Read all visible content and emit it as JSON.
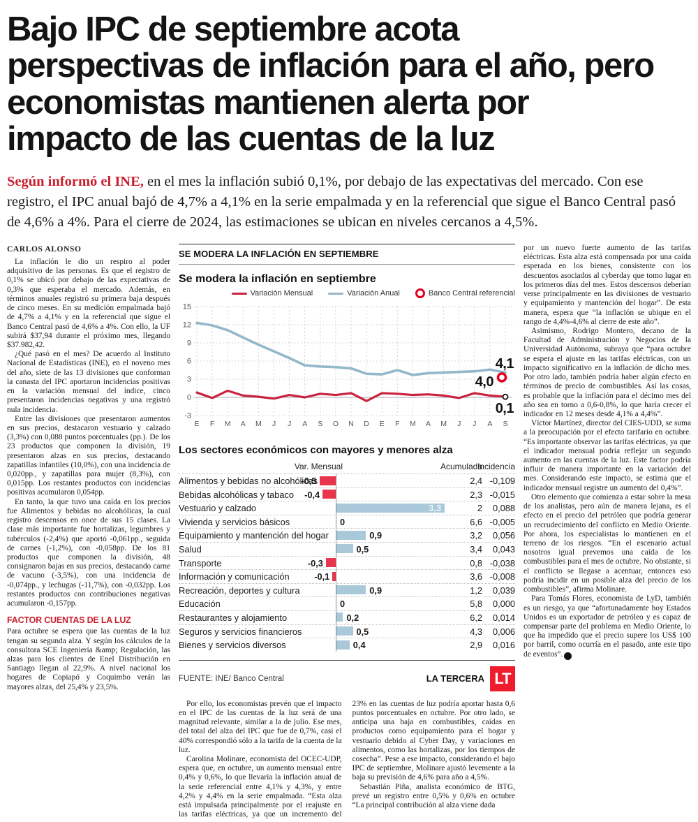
{
  "headline": {
    "lines": [
      "Bajo IPC de septiembre acota",
      "perspectivas de inflación para el año, pero",
      "economistas mantienen alerta por",
      "impacto de las cuentas de la luz"
    ]
  },
  "lede": {
    "kicker": "Según informó el INE,",
    "text": " en el mes la inflación subió 0,1%, por debajo de las expectativas del mercado. Con ese registro, el IPC anual bajó de 4,7% a 4,1% en la serie empalmada y en la referencial que sigue el Banco Central pasó de 4,6% a 4%. Para el cierre de 2024, las estimaciones se ubican en niveles cercanos a 4,5%."
  },
  "byline": "CARLOS ALONSO",
  "article": {
    "left": {
      "p1": "La inflación le dio un respiro al poder adquisitivo de las personas. Es que el registro de 0,1% se ubicó por debajo de las expectativas de 0,3% que esperaba el mercado. Además, en términos anuales registró su primera baja después de cinco meses. En su medición empalmada bajó de 4,7% a 4,1% y en la referencial que sigue el Banco Central pasó de 4,6% a 4%. Con ello, la UF subirá $37,94 durante el próximo mes, llegando $37.982,42.",
      "p2": "¿Qué pasó en el mes? De acuerdo al Instituto Nacional de Estadísticas (INE), en el noveno mes del año, siete de las 13 divisiones que conforman la canasta del IPC aportaron incidencias positivas en la variación mensual del índice, cinco presentaron incidencias negativas y una registró nula incidencia.",
      "p3": "Entre las divisiones que presentaron aumentos en sus precios, destacaron vestuario y calzado (3,3%) con 0,088 puntos porcentuales (pp.). De los 23 productos que componen la división, 19 presentaron alzas en sus precios, destacando zapatillas infantiles (10,0%), con una incidencia de 0,020pp., y zapatillas para mujer (8,3%), con 0,015pp. Los restantes productos con incidencias positivas acumularon 0,054pp.",
      "p4": "En tanto, la que tuvo una caída en los precios fue Alimentos y bebidas no alcohólicas, la cual registro descensos en once de sus 15 clases. La clase más importante fue hortalizas, legumbres y tubérculos (-2,4%) que aportó -0,061pp., seguida de carnes (-1,2%), con -0,058pp. De los 81 productos que componen la división, 48 consignaron bajas en sus precios, destacando carne de vacuno (-3,5%), con una incidencia de -0,074pp., y lechugas (-11,7%), con -0,032pp. Los restantes productos con contribuciones negativas acumularon -0,157pp.",
      "subhead": "FACTOR CUENTAS DE LA LUZ",
      "p5": "Para octubre se espera que las cuentas de la luz tengan su segunda alza. Y según los cálculos de la consultora SCE Ingeniería &amp; Regulación, las alzas para los clientes de Enel Distribución en Santiago llegan al 22,9%. A nivel nacional los hogares de Copiapó y Coquimbo verán las mayores alzas, del 25,4% y 23,5%."
    },
    "middle": {
      "p1": "Por ello, los economistas prevén que el impacto en el IPC de las cuentas de la luz será de una magnitud relevante, similar a la de julio. Ese mes, del total del alza del IPC que fue de 0,7%, casi el 40% correspondió sólo a la tarifa de la cuenta de la luz.",
      "p2": "Carolina Molinare, economista del OCEC-UDP, espera que, en octubre, un aumento mensual entre 0,4% y 0,6%, lo que llevaría la inflación anual de la serie referencial entre 4,1% y 4,3%, y entre 4,2% y 4,4% en la serie empalmada. “Esta alza está impulsada principalmente por el reajuste en las tarifas eléctricas, ya que un incremento del 23% en las cuentas de luz podría aportar hasta 0,6 puntos porcentuales en octubre. Por otro lado, se anticipa una baja en combustibles, caídas en productos como equipamiento para el hogar y vestuario debido al Cyber Day, y variaciones en alimentos, como las hortalizas, por los tiempos de cosecha”. Pese a ese impacto, considerando el bajo IPC de septiembre, Molinare ajustó levemente a la baja su previsión de 4,6% para año a 4,5%.",
      "p3": "Sebastián Piña, analista económico de BTG, prevé un registro entre 0,5% y 0,6% en octubre “La principal contribución al alza viene dada"
    },
    "right": {
      "p1": "por un nuevo fuerte aumento de las tarifas eléctricas. Esta alza está compensada por una caída esperada en los bienes, consistente con los descuentos asociados al cyberday que tomo lugar en los primeros días del mes. Estos descensos deberían verse principalmente en las divisiones de vestuario y equipamiento y mantención del hogar”. De esta manera, espera que “la inflación se ubique en el rango de 4,4%-4,6% al cierre de este año”.",
      "p2": "Asimismo, Rodrigo Montero, decano de la Facultad de Administración y Negocios de la Universidad Autónoma, subraya que “para octubre se espera el ajuste en las tarifas eléctricas, con un impacto significativo en la inflación de dicho mes. Por otro lado, también podría haber algún efecto en términos de precio de combustibles. Así las cosas, es probable que la inflación para el décimo mes del año sea en torno a 0,6-0,8%, lo que haría crecer el indicador en 12 meses desde 4,1% a 4,4%”.",
      "p3": "Víctor Martínez, director del CIES-UDD, se suma a la preocupación por el efecto tarifario en octubre. “Es importante observar las tarifas eléctricas, ya que el indicador mensual podría reflejar un segundo aumento en las cuentas de la luz. Este factor podría influir de manera importante en la variación del mes. Considerando este impacto, se estima que el indicador mensual registre un aumento del 0,4%”.",
      "p4": "Otro elemento que comienza a estar sobre la mesa de los analistas, pero aún de manera lejana, es el efecto en el precio del petróleo que podría generar un recrudecimiento del conflicto en Medio Oriente. Por ahora, los especialistas lo mantienen en el terreno de los riesgos. “En el escenario actual nosotros igual prevemos una caída de los combustibles para el mes de octubre. No obstante, si el conflicto se llegase a acentuar, entonces eso podría incidir en un posible alza del precio de los combustibles”, afirma Molinare.",
      "p5": "Para Tomás Flores, economista de LyD, también es un riesgo, ya que “afortunadamente hoy Estados Unidos es un exportador de petróleo y es capaz de compensar parte del problema en Medio Oriente, lo que ha impedido que el precio supere los US$ 100 por barril, como ocurría en el pasado, ante este tipo de eventos”."
    }
  },
  "graphic": {
    "kicker": "SE MODERA LA INFLACIÓN EN SEPTIEMBRE",
    "title": "Se modera la inflación en septiembre",
    "legend": [
      {
        "label": "Variación Mensual",
        "color": "#c9233f",
        "type": "line"
      },
      {
        "label": "Variación Anual",
        "color": "#94b7c9",
        "type": "line"
      },
      {
        "label": "Banco Central referencial",
        "color": "#e2001a",
        "type": "circle"
      }
    ],
    "bars_title": "Los sectores económicos con mayores y menores alza",
    "bars_headers": {
      "var": "Var. Mensual",
      "acumulada": "Acumulada",
      "incidencia": "Incidencia"
    },
    "source": "FUENTE: INE/ Banco Central",
    "credit": "LA TERCERA",
    "logo": "LT"
  },
  "icons": {
    "end_of_article": "▸"
  },
  "chart_data": [
    {
      "type": "line",
      "title": "Se modera la inflación en septiembre",
      "x_labels": [
        "E",
        "F",
        "M",
        "A",
        "M",
        "J",
        "J",
        "A",
        "S",
        "O",
        "N",
        "D",
        "E",
        "F",
        "M",
        "A",
        "M",
        "J",
        "J",
        "A",
        "S"
      ],
      "ylim": [
        -3,
        15
      ],
      "yticks": [
        15,
        12,
        9,
        6,
        3,
        0,
        -3
      ],
      "grid": true,
      "legend_position": "top",
      "series": [
        {
          "name": "Variación Anual",
          "color": "#94b7c9",
          "values": [
            12.3,
            11.9,
            11.1,
            9.9,
            8.7,
            7.6,
            6.5,
            5.3,
            5.1,
            5.0,
            4.8,
            3.9,
            3.8,
            4.5,
            3.7,
            4.0,
            4.1,
            4.2,
            4.3,
            4.6,
            4.1
          ],
          "end_label": "4,1"
        },
        {
          "name": "Variación Mensual",
          "color": "#c9233f",
          "values": [
            0.8,
            -0.1,
            1.1,
            0.3,
            0.1,
            -0.2,
            0.4,
            0.0,
            0.6,
            0.4,
            0.7,
            -0.6,
            0.7,
            0.6,
            0.4,
            0.5,
            0.3,
            -0.1,
            0.7,
            0.3,
            0.1
          ],
          "end_label": "0,1"
        }
      ],
      "reference_point": {
        "name": "Banco Central referencial",
        "color": "#e2001a",
        "x": "S",
        "value": 4.0,
        "label": "4,0"
      }
    },
    {
      "type": "bar",
      "title": "Los sectores económicos con mayores y menores alza",
      "value_header": "Var. Mensual",
      "columns": [
        "Acumulada",
        "Incidencia"
      ],
      "colors": {
        "positive": "#a9c8da",
        "negative": "#e8354b"
      },
      "rows": [
        {
          "category": "Alimentos y bebidas no alcohólicas",
          "var_mensual": -0.5,
          "label": "-0,5",
          "acumulada": "2,4",
          "incidencia": "-0,109"
        },
        {
          "category": "Bebidas alcohólicas y tabaco",
          "var_mensual": -0.4,
          "label": "-0,4",
          "acumulada": "2,3",
          "incidencia": "-0,015"
        },
        {
          "category": "Vestuario y calzado",
          "var_mensual": 3.3,
          "label": "3,3",
          "acumulada": "2",
          "incidencia": "0,088"
        },
        {
          "category": "Vivienda y servicios básicos",
          "var_mensual": 0,
          "label": "0",
          "acumulada": "6,6",
          "incidencia": "-0,005"
        },
        {
          "category": "Equipamiento y mantención del hogar",
          "var_mensual": 0.9,
          "label": "0,9",
          "acumulada": "3,2",
          "incidencia": "0,056"
        },
        {
          "category": "Salud",
          "var_mensual": 0.5,
          "label": "0,5",
          "acumulada": "3,4",
          "incidencia": "0,043"
        },
        {
          "category": "Transporte",
          "var_mensual": -0.3,
          "label": "-0,3",
          "acumulada": "0,8",
          "incidencia": "-0,038"
        },
        {
          "category": "Información y comunicación",
          "var_mensual": -0.1,
          "label": "-0,1",
          "acumulada": "3,6",
          "incidencia": "-0,008"
        },
        {
          "category": "Recreación, deportes y cultura",
          "var_mensual": 0.9,
          "label": "0,9",
          "acumulada": "1,2",
          "incidencia": "0,039"
        },
        {
          "category": "Educación",
          "var_mensual": 0,
          "label": "0",
          "acumulada": "5,8",
          "incidencia": "0,000"
        },
        {
          "category": "Restaurantes y alojamiento",
          "var_mensual": 0.2,
          "label": "0,2",
          "acumulada": "6,2",
          "incidencia": "0,014"
        },
        {
          "category": "Seguros y servicios financieros",
          "var_mensual": 0.5,
          "label": "0,5",
          "acumulada": "4,3",
          "incidencia": "0,006"
        },
        {
          "category": "Bienes y servicios diversos",
          "var_mensual": 0.4,
          "label": "0,4",
          "acumulada": "2,9",
          "incidencia": "0,016"
        }
      ]
    }
  ]
}
